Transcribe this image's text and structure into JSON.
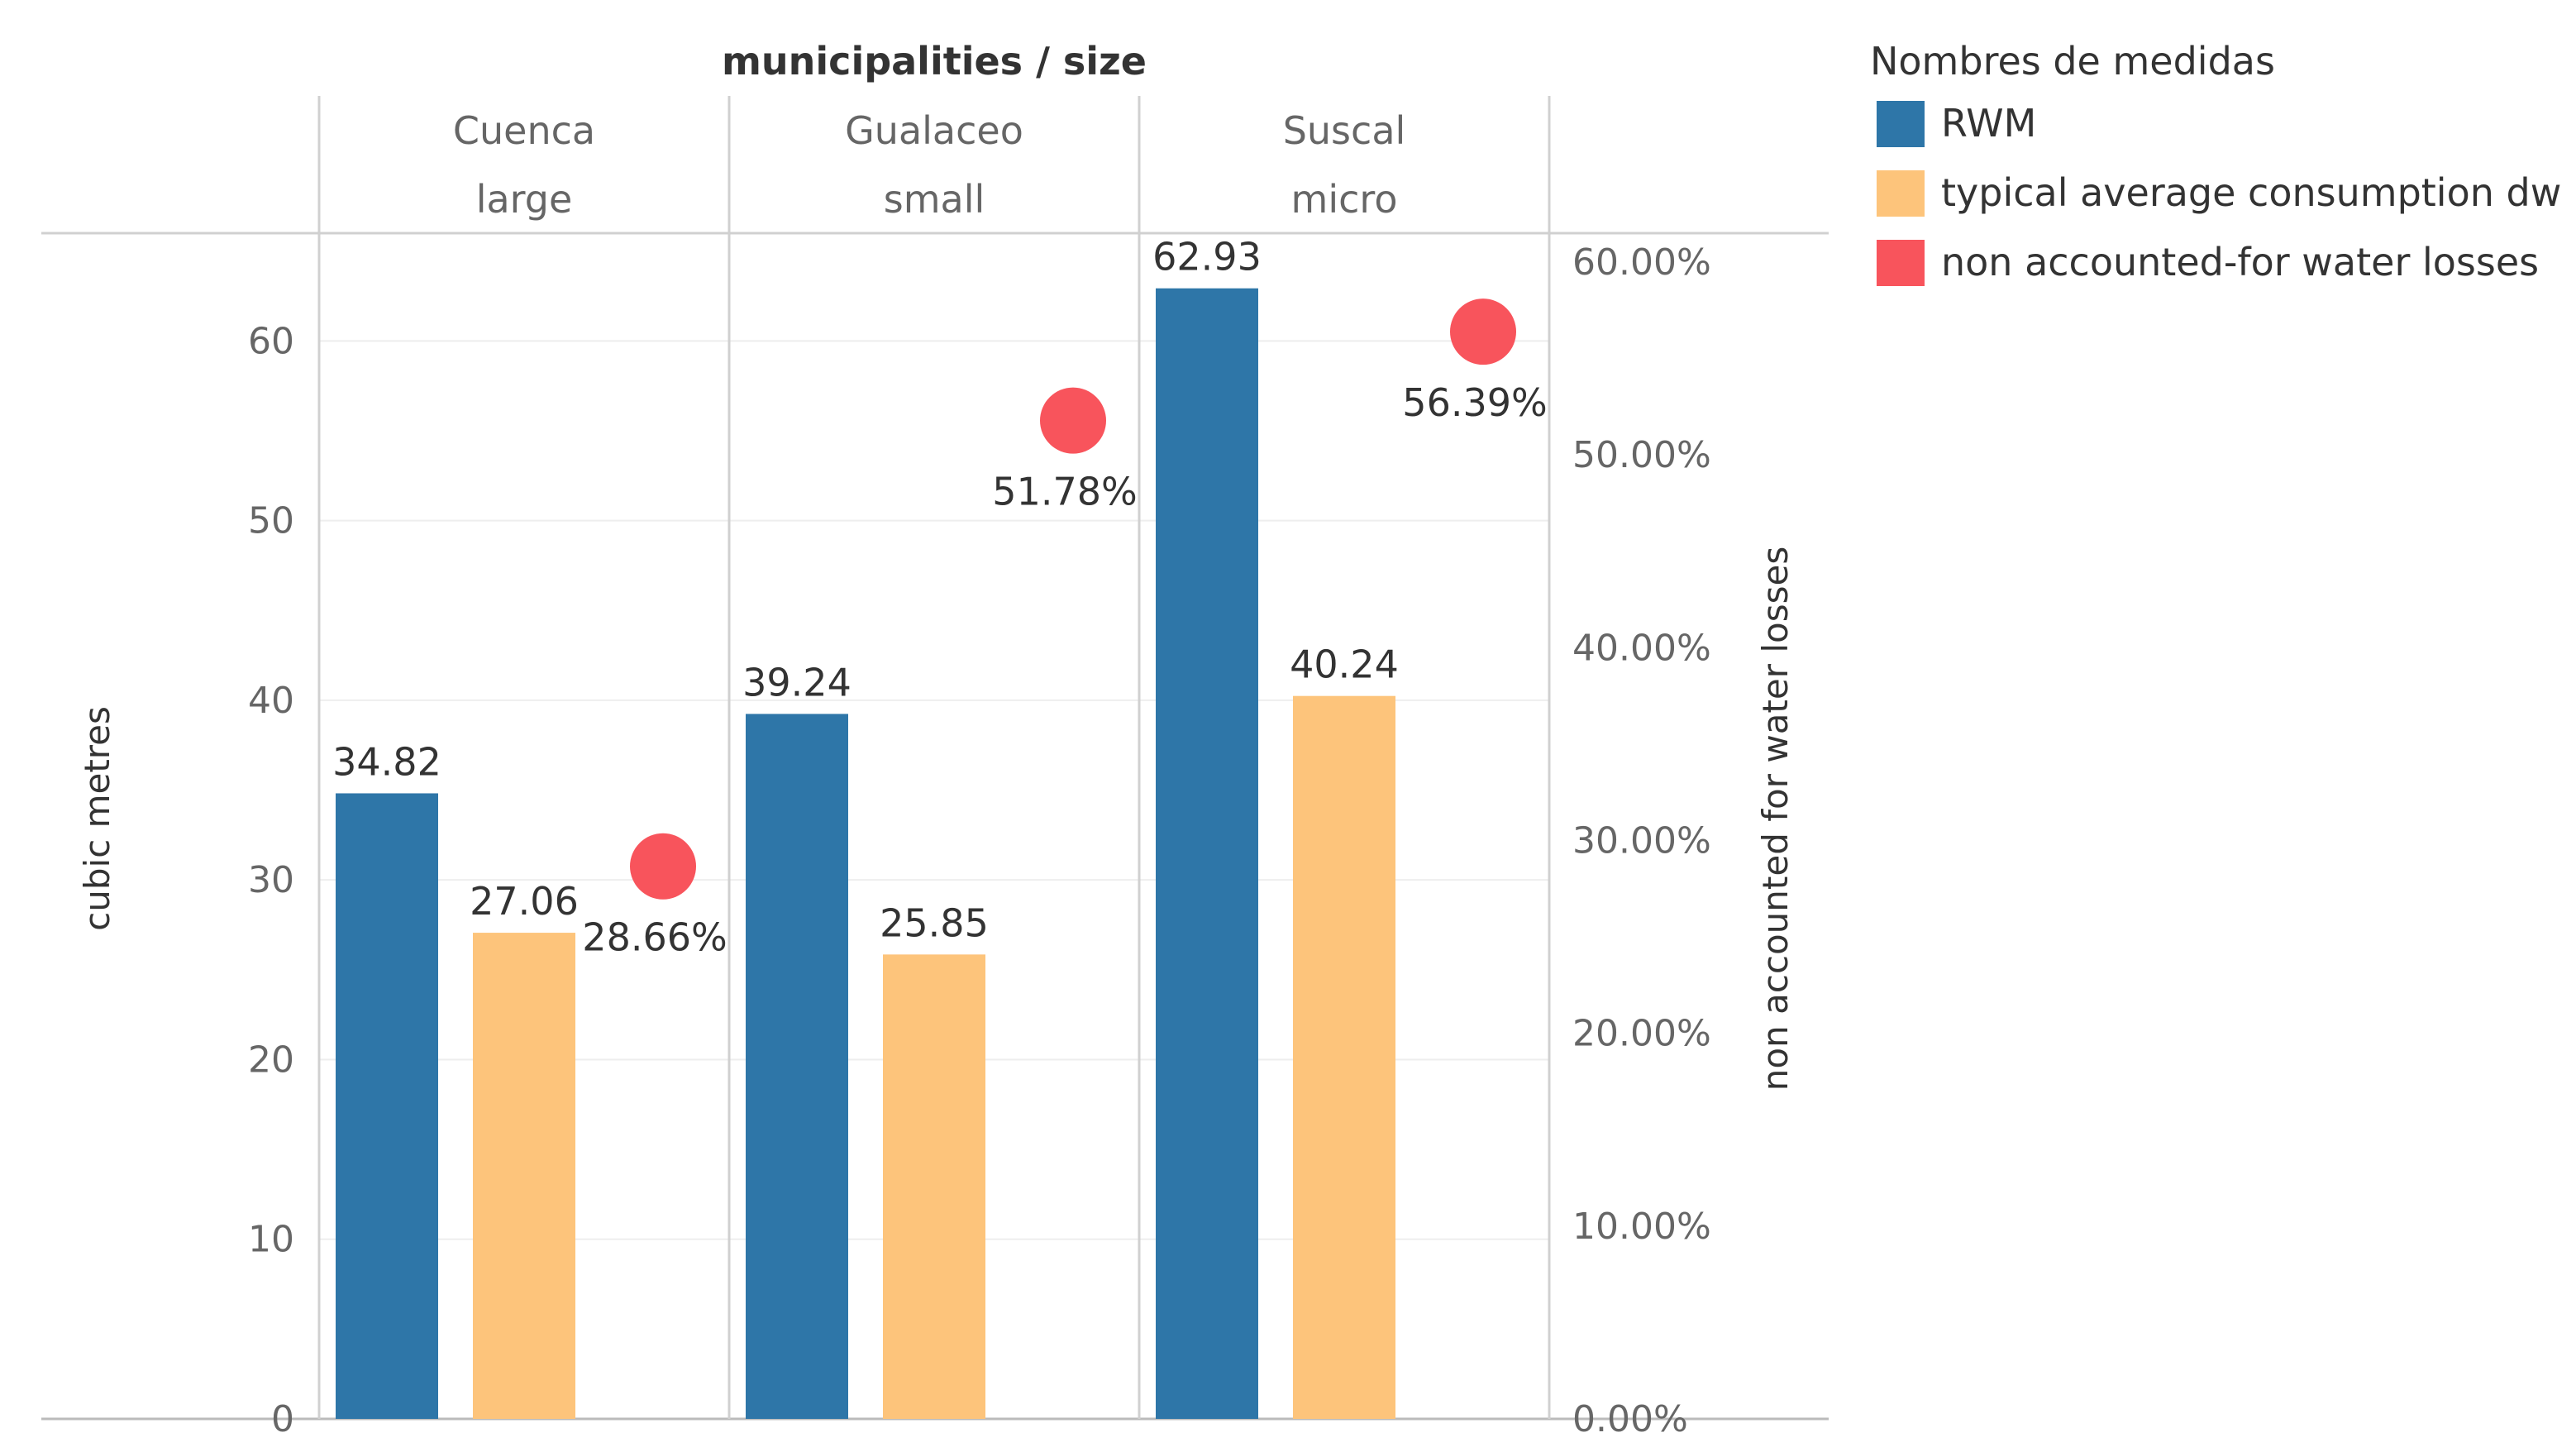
{
  "chart_data": {
    "type": "bar",
    "header_title": "municipalities / size",
    "columns": [
      {
        "municipality": "Cuenca",
        "size": "large"
      },
      {
        "municipality": "Gualaceo",
        "size": "small"
      },
      {
        "municipality": "Suscal",
        "size": "micro"
      }
    ],
    "series": [
      {
        "name": "RWM",
        "axis": "left",
        "mark": "bar",
        "color": "#2e76a8",
        "values": [
          34.82,
          39.24,
          62.93
        ],
        "labels": [
          "34.82",
          "39.24",
          "62.93"
        ]
      },
      {
        "name": "typical average consumption dw",
        "axis": "left",
        "mark": "bar",
        "color": "#fdc47b",
        "values": [
          27.06,
          25.85,
          40.24
        ],
        "labels": [
          "27.06",
          "25.85",
          "40.24"
        ]
      },
      {
        "name": "non accounted-for water losses",
        "axis": "right",
        "mark": "circle",
        "color": "#f8545c",
        "values": [
          28.66,
          51.78,
          56.39
        ],
        "labels": [
          "28.66%",
          "51.78%",
          "56.39%"
        ]
      }
    ],
    "left_axis": {
      "label": "cubic metres",
      "ylim": [
        0,
        66
      ],
      "ticks": [
        0,
        10,
        20,
        30,
        40,
        50,
        60
      ],
      "tick_labels": [
        "0",
        "10",
        "20",
        "30",
        "40",
        "50",
        "60"
      ]
    },
    "right_axis": {
      "label": "non accounted for water losses",
      "ylim": [
        0,
        61.5
      ],
      "ticks": [
        0,
        10,
        20,
        30,
        40,
        50,
        60
      ],
      "tick_labels": [
        "0.00%",
        "10.00%",
        "20.00%",
        "30.00%",
        "40.00%",
        "50.00%",
        "60.00%"
      ]
    },
    "legend": {
      "title": "Nombres de medidas",
      "position": "top-right"
    },
    "grid": true
  }
}
